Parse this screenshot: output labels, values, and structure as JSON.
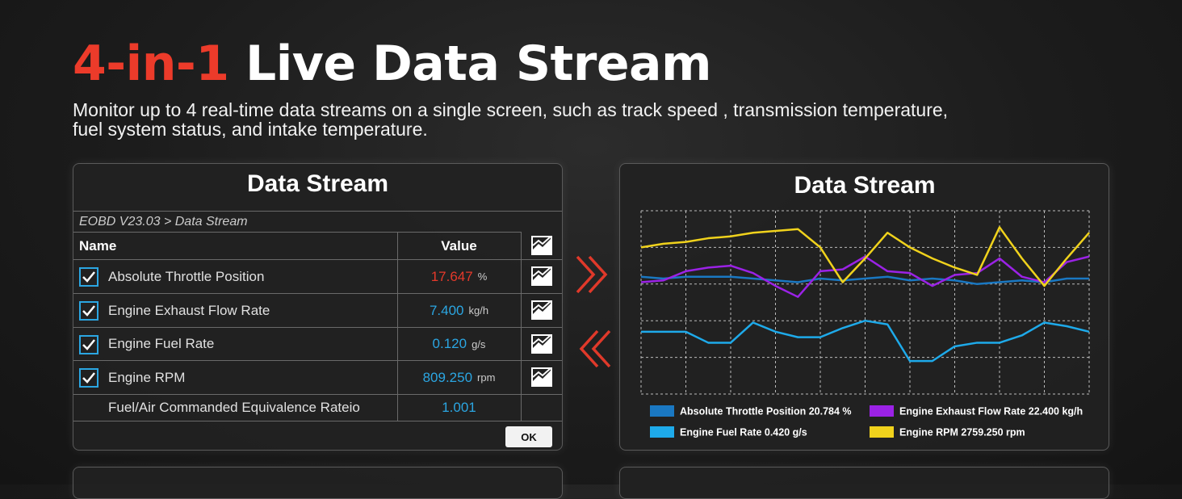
{
  "header": {
    "title_highlight": "4-in-1",
    "title": "Live Data Stream",
    "subtitle_lines": [
      "Monitor up to 4 real-time data streams on a single screen, such as track speed , transmission temperature,",
      "fuel system status, and intake temperature."
    ]
  },
  "table_panel": {
    "title": "Data Stream",
    "breadcrumb": "EOBD V23.03 > Data Stream",
    "columns": [
      "Name",
      "Value"
    ],
    "rows": [
      {
        "checked": true,
        "graph": true,
        "name": "Absolute Throttle Position",
        "value": "17.647",
        "unit": "%",
        "value_color": "#e5392a"
      },
      {
        "checked": true,
        "graph": true,
        "name": "Engine Exhaust Flow Rate",
        "value": "7.400",
        "unit": "kg/h",
        "value_color": "#2ba6e2"
      },
      {
        "checked": true,
        "graph": true,
        "name": "Engine Fuel Rate",
        "value": "0.120",
        "unit": "g/s",
        "value_color": "#2ba6e2"
      },
      {
        "checked": true,
        "graph": true,
        "name": "Engine RPM",
        "value": "809.250",
        "unit": "rpm",
        "value_color": "#2ba6e2"
      },
      {
        "checked": false,
        "graph": false,
        "name": "Fuel/Air Commanded Equivalence Rateio",
        "value": "1.001",
        "value_color": "#2ba6e2"
      }
    ],
    "button": "OK"
  },
  "chart_data": {
    "type": "line",
    "title": "Data Stream",
    "grid": true,
    "ylim": [
      0,
      100
    ],
    "categories": [
      null,
      null,
      null,
      null,
      null,
      null,
      null,
      null,
      null,
      null,
      null,
      null,
      null,
      null,
      null,
      null,
      null,
      null,
      null,
      null,
      null
    ],
    "series": [
      {
        "name": "Absolute Throttle Position 20.784 %",
        "color": "#1a78c2",
        "values": [
          64,
          63,
          64,
          64,
          64,
          63,
          62,
          61,
          63,
          62,
          63,
          64,
          62,
          63,
          62,
          60,
          61,
          62,
          61,
          63,
          63
        ]
      },
      {
        "name": "Engine Exhaust Flow Rate 22.400 kg/h",
        "color": "#9b22e6",
        "values": [
          61,
          62,
          67,
          69,
          70,
          66,
          59,
          53,
          67,
          68,
          75,
          67,
          66,
          59,
          65,
          66,
          74,
          64,
          61,
          72,
          75
        ]
      },
      {
        "name": "Engine Fuel Rate 0.420 g/s",
        "color": "#1eaaea",
        "values": [
          34,
          34,
          34,
          28,
          28,
          39,
          34,
          31,
          31,
          36,
          40,
          38,
          18,
          18,
          26,
          28,
          28,
          32,
          39,
          37,
          34
        ]
      },
      {
        "name": "Engine RPM 2759.250 rpm",
        "color": "#f0d21c",
        "values": [
          80,
          82,
          83,
          85,
          86,
          88,
          89,
          90,
          80,
          61,
          74,
          88,
          80,
          74,
          69,
          65,
          91,
          74,
          59,
          74,
          88
        ]
      }
    ]
  }
}
